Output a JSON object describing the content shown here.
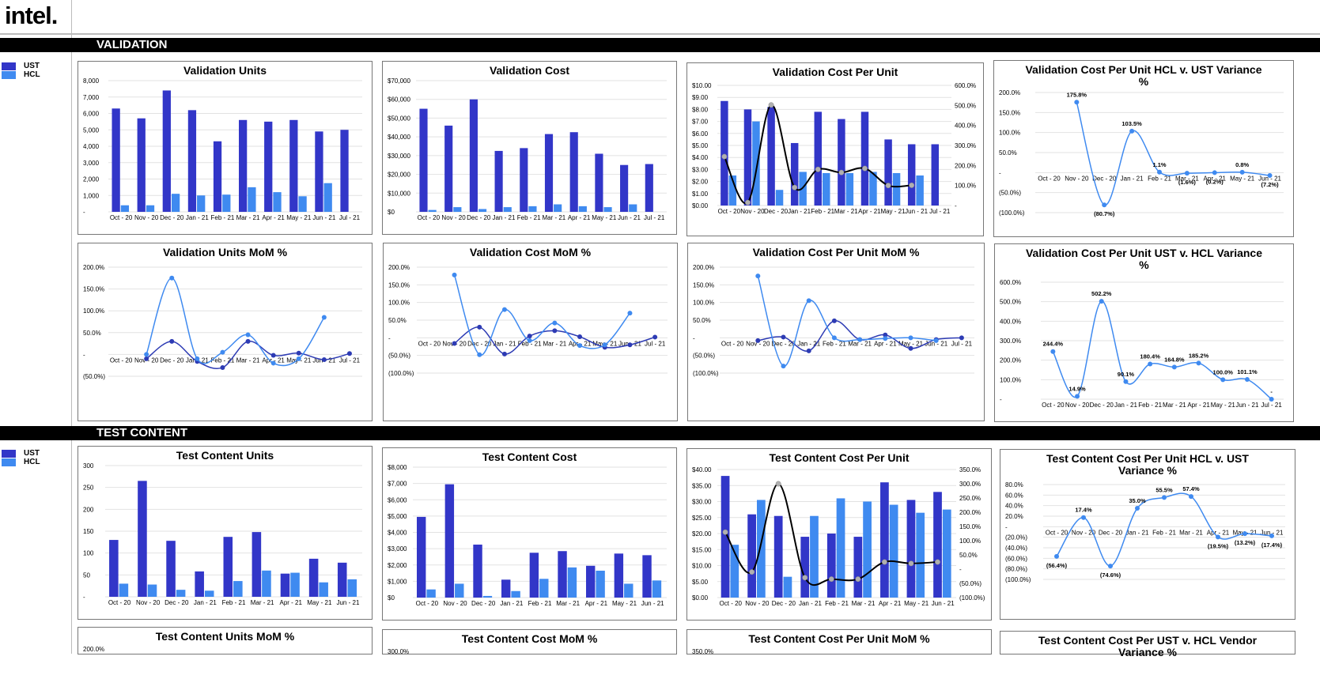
{
  "header": {
    "logo": "intel."
  },
  "sections": [
    {
      "title": "VALIDATION",
      "legend": [
        "UST",
        "HCL"
      ]
    },
    {
      "title": "TEST CONTENT",
      "legend": [
        "UST",
        "HCL"
      ]
    }
  ],
  "colors": {
    "ust": "#3236c8",
    "hcl": "#3f8af0",
    "line_dark": "#2d3bb4",
    "line_light": "#3f8af0",
    "black": "#000000",
    "grey_marker": "#b0b0b0"
  },
  "chart_data": [
    {
      "id": "validation-units",
      "type": "bar",
      "title": "Validation Units",
      "categories": [
        "Oct - 20",
        "Nov - 20",
        "Dec - 20",
        "Jan - 21",
        "Feb - 21",
        "Mar - 21",
        "Apr - 21",
        "May - 21",
        "Jun - 21",
        "Jul - 21"
      ],
      "series": [
        {
          "name": "UST",
          "values": [
            6300,
            5700,
            7400,
            6200,
            4300,
            5600,
            5500,
            5600,
            4900,
            5000
          ]
        },
        {
          "name": "HCL",
          "values": [
            400,
            400,
            1100,
            1000,
            1050,
            1500,
            1200,
            950,
            1750,
            0
          ]
        }
      ],
      "yticks": [
        "8,000",
        "7,000",
        "6,000",
        "5,000",
        "4,000",
        "3,000",
        "2,000",
        "1,000",
        "-"
      ],
      "ylim": [
        0,
        8000
      ]
    },
    {
      "id": "validation-cost",
      "type": "bar",
      "title": "Validation Cost",
      "categories": [
        "Oct - 20",
        "Nov - 20",
        "Dec - 20",
        "Jan - 21",
        "Feb - 21",
        "Mar - 21",
        "Apr - 21",
        "May - 21",
        "Jun - 21",
        "Jul - 21"
      ],
      "series": [
        {
          "name": "UST",
          "values": [
            55000,
            46000,
            60000,
            32500,
            34000,
            41500,
            42500,
            31000,
            25000,
            25500
          ]
        },
        {
          "name": "HCL",
          "values": [
            1000,
            2500,
            1500,
            2500,
            3000,
            4000,
            3000,
            2500,
            4000,
            0
          ]
        }
      ],
      "yticks": [
        "$70,000",
        "$60,000",
        "$50,000",
        "$40,000",
        "$30,000",
        "$20,000",
        "$10,000",
        "$0"
      ],
      "ylim": [
        0,
        70000
      ]
    },
    {
      "id": "validation-cost-per-unit",
      "type": "bar",
      "title": "Validation Cost Per Unit",
      "categories": [
        "Oct - 20",
        "Nov - 20",
        "Dec - 20",
        "Jan - 21",
        "Feb - 21",
        "Mar - 21",
        "Apr - 21",
        "May - 21",
        "Jun - 21",
        "Jul - 21"
      ],
      "series": [
        {
          "name": "UST",
          "values": [
            8.7,
            8.0,
            8.2,
            5.2,
            7.8,
            7.2,
            7.8,
            5.5,
            5.1,
            5.1
          ]
        },
        {
          "name": "HCL",
          "values": [
            2.5,
            7.0,
            1.3,
            2.8,
            2.7,
            2.7,
            2.8,
            2.7,
            2.5,
            0
          ]
        }
      ],
      "line": {
        "values": [
          244.4,
          14.9,
          502.2,
          90.1,
          180.4,
          164.8,
          185.2,
          100.0,
          101.1
        ]
      },
      "yticks": [
        "$10.00",
        "$9.00",
        "$8.00",
        "$7.00",
        "$6.00",
        "$5.00",
        "$4.00",
        "$3.00",
        "$2.00",
        "$1.00",
        "$0.00"
      ],
      "ylim": [
        0,
        10
      ],
      "y2ticks": [
        "600.0%",
        "500.0%",
        "400.0%",
        "300.0%",
        "200.0%",
        "100.0%",
        "-"
      ],
      "y2lim": [
        0,
        600
      ]
    },
    {
      "id": "validation-cpu-hcl-ust",
      "type": "line",
      "title": "Validation Cost Per Unit HCL v. UST Variance %",
      "categories": [
        "Oct - 20",
        "Nov - 20",
        "Dec - 20",
        "Jan - 21",
        "Feb - 21",
        "Mar - 21",
        "Apr - 21",
        "May - 21",
        "Jun - 21"
      ],
      "series": [
        {
          "values": [
            null,
            175.8,
            -80.7,
            103.5,
            1.1,
            -1.6,
            -0.2,
            0.8,
            -7.2
          ]
        }
      ],
      "labels": [
        "",
        "175.8%",
        "(80.7%)",
        "103.5%",
        "1.1%",
        "(1.6%)",
        "(0.2%)",
        "0.8%",
        "(7.2%)"
      ],
      "yticks": [
        "200.0%",
        "150.0%",
        "100.0%",
        "50.0%",
        "-",
        "(50.0%)",
        "(100.0%)"
      ],
      "ylim": [
        -100,
        200
      ]
    },
    {
      "id": "validation-units-mom",
      "type": "line",
      "title": "Validation Units MoM %",
      "categories": [
        "Oct - 20",
        "Nov - 20",
        "Dec - 20",
        "Jan - 21",
        "Feb - 21",
        "Mar - 21",
        "Apr - 21",
        "May - 21",
        "Jun - 21",
        "Jul - 21"
      ],
      "series": [
        {
          "name": "UST",
          "values": [
            null,
            -10,
            30,
            -16,
            -30,
            30,
            -2,
            3,
            -12,
            2
          ]
        },
        {
          "name": "HCL",
          "values": [
            null,
            0,
            175,
            -10,
            5,
            45,
            -20,
            -10,
            85,
            null
          ]
        }
      ],
      "yticks": [
        "200.0%",
        "150.0%",
        "100.0%",
        "50.0%",
        "-",
        "(50.0%)"
      ],
      "ylim": [
        -50,
        200
      ]
    },
    {
      "id": "validation-cost-mom",
      "type": "line",
      "title": "Validation Cost MoM %",
      "categories": [
        "Oct - 20",
        "Nov - 20",
        "Dec - 20",
        "Jan - 21",
        "Feb - 21",
        "Mar - 21",
        "Apr - 21",
        "May - 21",
        "Jun - 21",
        "Jul - 21"
      ],
      "series": [
        {
          "name": "UST",
          "values": [
            null,
            -16,
            30,
            -46,
            5,
            20,
            3,
            -27,
            -20,
            2
          ]
        },
        {
          "name": "HCL",
          "values": [
            null,
            178,
            -48,
            80,
            -8,
            42,
            -22,
            -20,
            70,
            null
          ]
        }
      ],
      "yticks": [
        "200.0%",
        "150.0%",
        "100.0%",
        "50.0%",
        "-",
        "(50.0%)",
        "(100.0%)"
      ],
      "ylim": [
        -100,
        200
      ]
    },
    {
      "id": "validation-cpu-mom",
      "type": "line",
      "title": "Validation Cost Per Unit MoM %",
      "categories": [
        "Oct - 20",
        "Nov - 20",
        "Dec - 20",
        "Jan - 21",
        "Feb - 21",
        "Mar - 21",
        "Apr - 21",
        "May - 21",
        "Jun - 21",
        "Jul - 21"
      ],
      "series": [
        {
          "name": "UST",
          "values": [
            null,
            -8,
            2,
            -37,
            48,
            -5,
            8,
            -30,
            -5,
            0
          ]
        },
        {
          "name": "HCL",
          "values": [
            null,
            175,
            -80,
            105,
            0,
            -5,
            -2,
            0,
            -8,
            null
          ]
        }
      ],
      "yticks": [
        "200.0%",
        "150.0%",
        "100.0%",
        "50.0%",
        "-",
        "(50.0%)",
        "(100.0%)"
      ],
      "ylim": [
        -100,
        200
      ]
    },
    {
      "id": "validation-cpu-ust-hcl",
      "type": "line",
      "title": "Validation Cost Per Unit UST v. HCL Variance %",
      "categories": [
        "Oct - 20",
        "Nov - 20",
        "Dec - 20",
        "Jan - 21",
        "Feb - 21",
        "Mar - 21",
        "Apr - 21",
        "May - 21",
        "Jun - 21",
        "Jul - 21"
      ],
      "series": [
        {
          "values": [
            244.4,
            14.9,
            502.2,
            90.1,
            180.4,
            164.8,
            185.2,
            100.0,
            101.1,
            0
          ]
        }
      ],
      "labels": [
        "244.4%",
        "14.9%",
        "502.2%",
        "90.1%",
        "180.4%",
        "164.8%",
        "185.2%",
        "100.0%",
        "101.1%",
        "-"
      ],
      "yticks": [
        "600.0%",
        "500.0%",
        "400.0%",
        "300.0%",
        "200.0%",
        "100.0%",
        "-"
      ],
      "ylim": [
        0,
        600
      ]
    },
    {
      "id": "tc-units",
      "type": "bar",
      "title": "Test Content Units",
      "categories": [
        "Oct - 20",
        "Nov - 20",
        "Dec - 20",
        "Jan - 21",
        "Feb - 21",
        "Mar - 21",
        "Apr - 21",
        "May - 21",
        "Jun - 21"
      ],
      "series": [
        {
          "name": "UST",
          "values": [
            130,
            265,
            128,
            58,
            137,
            148,
            53,
            87,
            78
          ]
        },
        {
          "name": "HCL",
          "values": [
            30,
            28,
            16,
            14,
            36,
            60,
            55,
            33,
            40
          ]
        }
      ],
      "yticks": [
        "300",
        "250",
        "200",
        "150",
        "100",
        "50",
        "-"
      ],
      "ylim": [
        0,
        300
      ]
    },
    {
      "id": "tc-cost",
      "type": "bar",
      "title": "Test Content Cost",
      "categories": [
        "Oct - 20",
        "Nov - 20",
        "Dec - 20",
        "Jan - 21",
        "Feb - 21",
        "Mar - 21",
        "Apr - 21",
        "May - 21",
        "Jun - 21"
      ],
      "series": [
        {
          "name": "UST",
          "values": [
            4950,
            6950,
            3250,
            1100,
            2750,
            2850,
            1950,
            2700,
            2600
          ]
        },
        {
          "name": "HCL",
          "values": [
            500,
            850,
            100,
            400,
            1150,
            1850,
            1650,
            850,
            1050
          ]
        }
      ],
      "yticks": [
        "$8,000",
        "$7,000",
        "$6,000",
        "$5,000",
        "$4,000",
        "$3,000",
        "$2,000",
        "$1,000",
        "$0"
      ],
      "ylim": [
        0,
        8000
      ]
    },
    {
      "id": "tc-cost-per-unit",
      "type": "bar",
      "title": "Test Content Cost Per Unit",
      "categories": [
        "Oct - 20",
        "Nov - 20",
        "Dec - 20",
        "Jan - 21",
        "Feb - 21",
        "Mar - 21",
        "Apr - 21",
        "May - 21",
        "Jun - 21"
      ],
      "series": [
        {
          "name": "UST",
          "values": [
            38,
            26,
            25.5,
            19,
            20,
            19,
            36,
            30.5,
            33
          ]
        },
        {
          "name": "HCL",
          "values": [
            16.5,
            30.5,
            6.5,
            25.5,
            31,
            30,
            29,
            26.5,
            27.5
          ]
        }
      ],
      "line": {
        "values": [
          130,
          -10,
          300,
          -30,
          -35,
          -35,
          25,
          20,
          25
        ]
      },
      "yticks": [
        "$40.00",
        "$35.00",
        "$30.00",
        "$25.00",
        "$20.00",
        "$15.00",
        "$10.00",
        "$5.00",
        "$0.00"
      ],
      "ylim": [
        0,
        40
      ],
      "y2ticks": [
        "350.0%",
        "300.0%",
        "250.0%",
        "200.0%",
        "150.0%",
        "100.0%",
        "50.0%",
        "-",
        "(50.0%)",
        "(100.0%)"
      ],
      "y2lim": [
        -100,
        350
      ]
    },
    {
      "id": "tc-cpu-hcl-ust",
      "type": "line",
      "title": "Test Content Cost Per Unit HCL v. UST Variance %",
      "categories": [
        "Oct - 20",
        "Nov - 20",
        "Dec - 20",
        "Jan - 21",
        "Feb - 21",
        "Mar - 21",
        "Apr - 21",
        "May - 21",
        "Jun - 21"
      ],
      "series": [
        {
          "values": [
            -56.4,
            17.4,
            -74.6,
            35.0,
            55.5,
            57.4,
            -19.5,
            -13.2,
            -17.4
          ]
        }
      ],
      "labels": [
        "(56.4%)",
        "17.4%",
        "(74.6%)",
        "35.0%",
        "55.5%",
        "57.4%",
        "(19.5%)",
        "(13.2%)",
        "(17.4%)"
      ],
      "yticks": [
        "80.0%",
        "60.0%",
        "40.0%",
        "20.0%",
        "-",
        "(20.0%)",
        "(40.0%)",
        "(60.0%)",
        "(80.0%)",
        "(100.0%)"
      ],
      "ylim": [
        -100,
        80
      ]
    },
    {
      "id": "tc-units-mom",
      "type": "line",
      "title": "Test Content Units MoM %",
      "yticks": [
        "200.0%"
      ]
    },
    {
      "id": "tc-cost-mom",
      "type": "line",
      "title": "Test Content Cost MoM %",
      "yticks": [
        "300.0%"
      ]
    },
    {
      "id": "tc-cpu-mom",
      "type": "line",
      "title": "Test Content Cost Per Unit MoM %",
      "yticks": [
        "350.0%"
      ]
    },
    {
      "id": "tc-cpu-ust-hcl",
      "type": "line",
      "title": "Test Content Cost Per UST v. HCL Vendor Variance %"
    }
  ]
}
